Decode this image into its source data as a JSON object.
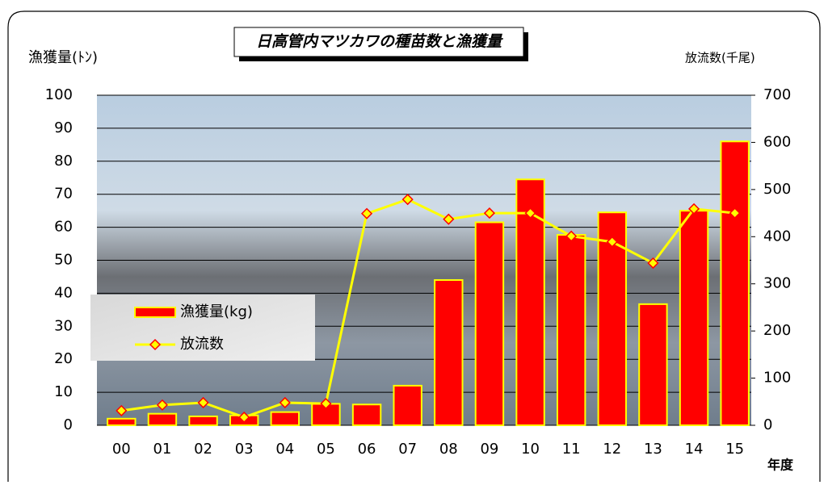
{
  "chart_data": {
    "type": "bar-line",
    "title": "日高管内マツカワの種苗数と漁獲量",
    "y_label": "漁獲量(ﾄﾝ)",
    "y2_label": "放流数(千尾)",
    "x_label": "年度",
    "categories": [
      "00",
      "01",
      "02",
      "03",
      "04",
      "05",
      "06",
      "07",
      "08",
      "09",
      "10",
      "11",
      "12",
      "13",
      "14",
      "15"
    ],
    "series": [
      {
        "name": "漁獲量(kg)",
        "type": "bar",
        "color": "#ff0000",
        "edge_color": "#ffff00",
        "values": [
          2,
          3.5,
          2.7,
          3,
          4,
          6.5,
          6.3,
          12,
          44,
          61.5,
          74.5,
          57.7,
          64.5,
          36.7,
          65,
          86
        ]
      },
      {
        "name": "放流数",
        "type": "line",
        "axis": "y2",
        "color": "#ffff00",
        "marker_color": "#ff0000",
        "values": [
          31,
          43,
          48,
          17,
          48,
          46,
          449,
          479,
          437,
          450,
          450,
          401,
          389,
          344,
          459,
          450
        ]
      }
    ],
    "ylim": [
      0,
      100
    ],
    "yticks": [
      0,
      10,
      20,
      30,
      40,
      50,
      60,
      70,
      80,
      90,
      100
    ],
    "y2lim": [
      0,
      700
    ],
    "y2ticks": [
      0,
      100,
      200,
      300,
      400,
      500,
      600,
      700
    ],
    "grid": true
  }
}
